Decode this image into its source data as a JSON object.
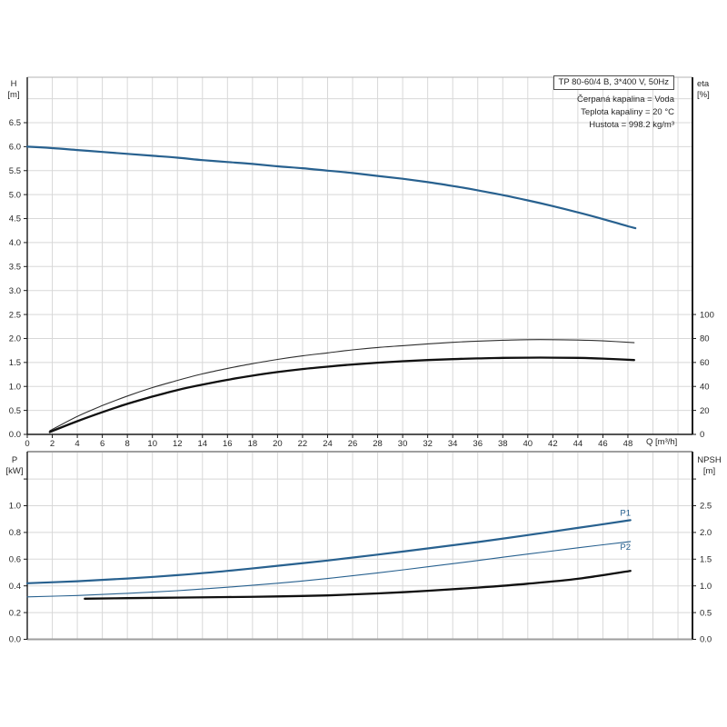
{
  "header": {
    "title": "TP 80-60/4 B, 3*400 V, 50Hz",
    "info_lines": [
      "Čerpaná kapalina = Voda",
      "Teplota kapaliny = 20 °C",
      "Hustota = 998.2 kg/m³"
    ]
  },
  "colors": {
    "curve_blue": "#28618f",
    "curve_black": "#101010",
    "curve_thin_black": "#2e2e2e",
    "grid": "#d8d8d8",
    "frame_gray": "#9e9e9e",
    "frame_light": "#b3b3b3",
    "axis_dark": "#1a1a1a",
    "text": "#262626"
  },
  "chart_data": [
    {
      "name": "head-efficiency",
      "type": "line",
      "x_axis": {
        "label": "Q [m³/h]",
        "min": 0,
        "max": 53.2,
        "grid_step": 2,
        "ticks": [
          [
            0,
            "0"
          ],
          [
            2,
            "2"
          ],
          [
            4,
            "4"
          ],
          [
            6,
            "6"
          ],
          [
            8,
            "8"
          ],
          [
            10,
            "10"
          ],
          [
            12,
            "12"
          ],
          [
            14,
            "14"
          ],
          [
            16,
            "16"
          ],
          [
            18,
            "18"
          ],
          [
            20,
            "20"
          ],
          [
            22,
            "22"
          ],
          [
            24,
            "24"
          ],
          [
            26,
            "26"
          ],
          [
            28,
            "28"
          ],
          [
            30,
            "30"
          ],
          [
            32,
            "32"
          ],
          [
            34,
            "34"
          ],
          [
            36,
            "36"
          ],
          [
            38,
            "38"
          ],
          [
            40,
            "40"
          ],
          [
            42,
            "42"
          ],
          [
            44,
            "44"
          ],
          [
            46,
            "46"
          ],
          [
            48,
            "48"
          ]
        ]
      },
      "y_left": {
        "title_lines": [
          "H",
          "[m]"
        ],
        "min": 0,
        "max": 7.45,
        "grid_step": 0.5,
        "ticks": [
          [
            0,
            "0.0"
          ],
          [
            0.5,
            "0.5"
          ],
          [
            1,
            "1.0"
          ],
          [
            1.5,
            "1.5"
          ],
          [
            2,
            "2.0"
          ],
          [
            2.5,
            "2.5"
          ],
          [
            3,
            "3.0"
          ],
          [
            3.5,
            "3.5"
          ],
          [
            4,
            "4.0"
          ],
          [
            4.5,
            "4.5"
          ],
          [
            5,
            "5.0"
          ],
          [
            5.5,
            "5.5"
          ],
          [
            6,
            "6.0"
          ],
          [
            6.5,
            "6.5"
          ]
        ]
      },
      "y_right": {
        "title_lines": [
          "eta",
          "[%]"
        ],
        "factor_vs_left": 40,
        "ticks": [
          [
            0,
            "0"
          ],
          [
            20,
            "20"
          ],
          [
            40,
            "40"
          ],
          [
            60,
            "60"
          ],
          [
            80,
            "80"
          ],
          [
            100,
            "100"
          ]
        ]
      },
      "series": [
        {
          "name": "H",
          "axis": "left",
          "color": "#28618f",
          "width": 2.2,
          "points": [
            [
              0,
              6.0
            ],
            [
              2,
              5.97
            ],
            [
              4,
              5.93
            ],
            [
              6,
              5.89
            ],
            [
              8,
              5.85
            ],
            [
              10,
              5.81
            ],
            [
              12,
              5.77
            ],
            [
              14,
              5.72
            ],
            [
              16,
              5.68
            ],
            [
              18,
              5.64
            ],
            [
              20,
              5.59
            ],
            [
              22,
              5.55
            ],
            [
              24,
              5.5
            ],
            [
              26,
              5.45
            ],
            [
              28,
              5.39
            ],
            [
              30,
              5.33
            ],
            [
              32,
              5.26
            ],
            [
              34,
              5.18
            ],
            [
              36,
              5.09
            ],
            [
              38,
              4.99
            ],
            [
              40,
              4.88
            ],
            [
              42,
              4.76
            ],
            [
              44,
              4.63
            ],
            [
              46,
              4.49
            ],
            [
              48,
              4.34
            ],
            [
              48.6,
              4.3
            ]
          ]
        },
        {
          "name": "eta-thin",
          "axis": "right",
          "color": "#2e2e2e",
          "width": 1.1,
          "points": [
            [
              1.8,
              3
            ],
            [
              4,
              15
            ],
            [
              6,
              24
            ],
            [
              8,
              32
            ],
            [
              10,
              39
            ],
            [
              12,
              45
            ],
            [
              14,
              50.5
            ],
            [
              16,
              55
            ],
            [
              18,
              59
            ],
            [
              20,
              62.5
            ],
            [
              22,
              65.5
            ],
            [
              24,
              68
            ],
            [
              26,
              70.5
            ],
            [
              28,
              72.5
            ],
            [
              30,
              74
            ],
            [
              32,
              75.5
            ],
            [
              34,
              76.8
            ],
            [
              36,
              77.8
            ],
            [
              38,
              78.5
            ],
            [
              40,
              79
            ],
            [
              42,
              79
            ],
            [
              44,
              78.7
            ],
            [
              46,
              78
            ],
            [
              48.5,
              76.5
            ]
          ]
        },
        {
          "name": "eta-thick",
          "axis": "right",
          "color": "#101010",
          "width": 2.3,
          "points": [
            [
              1.8,
              2
            ],
            [
              4,
              11
            ],
            [
              6,
              18.5
            ],
            [
              8,
              25.5
            ],
            [
              10,
              31.5
            ],
            [
              12,
              37
            ],
            [
              14,
              41.5
            ],
            [
              16,
              45.5
            ],
            [
              18,
              49
            ],
            [
              20,
              52
            ],
            [
              22,
              54.5
            ],
            [
              24,
              56.5
            ],
            [
              26,
              58.3
            ],
            [
              28,
              59.8
            ],
            [
              30,
              61
            ],
            [
              32,
              62
            ],
            [
              34,
              62.8
            ],
            [
              36,
              63.4
            ],
            [
              38,
              63.8
            ],
            [
              40,
              64
            ],
            [
              42,
              64
            ],
            [
              44,
              63.8
            ],
            [
              46,
              63.2
            ],
            [
              48.5,
              62
            ]
          ]
        }
      ],
      "annotations": []
    },
    {
      "name": "power-npsh",
      "type": "line",
      "x_axis": {
        "label": "",
        "min": 0,
        "max": 53.2,
        "grid_step": 2,
        "ticks": []
      },
      "y_left": {
        "title_lines": [
          "P",
          "[kW]"
        ],
        "min": 0,
        "max": 1.4,
        "grid_step": 0.2,
        "ticks": [
          [
            0,
            "0.0"
          ],
          [
            0.2,
            "0.2"
          ],
          [
            0.4,
            "0.4"
          ],
          [
            0.6,
            "0.6"
          ],
          [
            0.8,
            "0.8"
          ],
          [
            1,
            "1.0"
          ],
          [
            1.2,
            ""
          ]
        ]
      },
      "y_right": {
        "title_lines": [
          "NPSH",
          "[m]"
        ],
        "factor_vs_left": 2.5,
        "ticks": [
          [
            0,
            "0.0"
          ],
          [
            0.5,
            "0.5"
          ],
          [
            1,
            "1.0"
          ],
          [
            1.5,
            "1.5"
          ],
          [
            2,
            "2.0"
          ],
          [
            2.5,
            "2.5"
          ],
          [
            3,
            ""
          ]
        ]
      },
      "series": [
        {
          "name": "P1",
          "axis": "left",
          "color": "#28618f",
          "width": 2.2,
          "points": [
            [
              0,
              0.42
            ],
            [
              4,
              0.435
            ],
            [
              8,
              0.455
            ],
            [
              12,
              0.48
            ],
            [
              16,
              0.512
            ],
            [
              20,
              0.55
            ],
            [
              24,
              0.59
            ],
            [
              28,
              0.634
            ],
            [
              32,
              0.68
            ],
            [
              36,
              0.728
            ],
            [
              40,
              0.78
            ],
            [
              44,
              0.834
            ],
            [
              48.2,
              0.892
            ]
          ]
        },
        {
          "name": "P2",
          "axis": "left",
          "color": "#28618f",
          "width": 1.1,
          "points": [
            [
              0,
              0.318
            ],
            [
              4,
              0.328
            ],
            [
              8,
              0.344
            ],
            [
              12,
              0.364
            ],
            [
              16,
              0.39
            ],
            [
              20,
              0.42
            ],
            [
              24,
              0.455
            ],
            [
              28,
              0.497
            ],
            [
              32,
              0.543
            ],
            [
              36,
              0.59
            ],
            [
              40,
              0.638
            ],
            [
              44,
              0.685
            ],
            [
              48.2,
              0.732
            ]
          ]
        },
        {
          "name": "NPSH",
          "axis": "right",
          "color": "#101010",
          "width": 2.3,
          "points": [
            [
              4.6,
              0.76
            ],
            [
              8,
              0.77
            ],
            [
              12,
              0.78
            ],
            [
              16,
              0.79
            ],
            [
              20,
              0.802
            ],
            [
              24,
              0.822
            ],
            [
              28,
              0.858
            ],
            [
              32,
              0.908
            ],
            [
              36,
              0.968
            ],
            [
              40,
              1.04
            ],
            [
              44,
              1.132
            ],
            [
              48.2,
              1.28
            ]
          ]
        }
      ],
      "annotations": [
        {
          "text": "P1",
          "x": 47.8,
          "y": 0.945
        },
        {
          "text": "P2",
          "x": 47.8,
          "y": 0.69
        }
      ]
    }
  ]
}
